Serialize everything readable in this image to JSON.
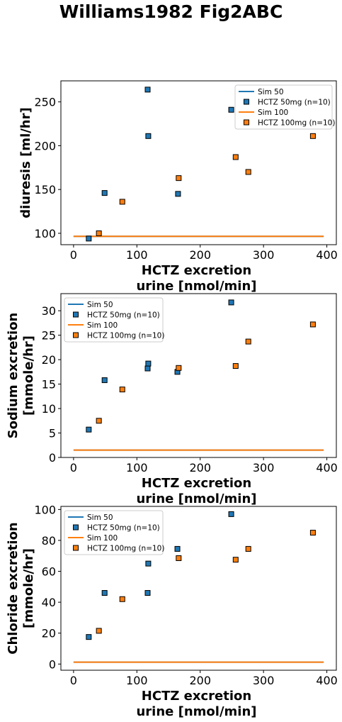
{
  "figure": {
    "title": "Williams1982 Fig2ABC"
  },
  "colors": {
    "sim50": "#1f77b4",
    "sim100": "#ff7f0e",
    "axis": "#000000",
    "background": "#ffffff"
  },
  "chart_data": [
    {
      "type": "scatter",
      "xlabel": [
        "HCTZ excretion",
        "urine [nmol/min]"
      ],
      "ylabel": [
        "diuresis [ml/hr]"
      ],
      "xlim": [
        -20,
        415
      ],
      "ylim": [
        87,
        274
      ],
      "xticks": [
        0,
        100,
        200,
        300,
        400
      ],
      "yticks": [
        100,
        150,
        200,
        250
      ],
      "grid": false,
      "legend_position": "top-right",
      "series": [
        {
          "name": "Sim 50",
          "kind": "line",
          "color": "#1f77b4",
          "x": [
            0,
            395
          ],
          "y": [
            96.5,
            96.5
          ]
        },
        {
          "name": "HCTZ 50mg (n=10)",
          "kind": "marker",
          "color": "#1f77b4",
          "x": [
            24,
            49,
            117,
            118,
            165,
            249
          ],
          "y": [
            94,
            146,
            264,
            211,
            145,
            241
          ]
        },
        {
          "name": "Sim 100",
          "kind": "line",
          "color": "#ff7f0e",
          "x": [
            0,
            395
          ],
          "y": [
            96.5,
            96.5
          ]
        },
        {
          "name": "HCTZ 100mg (n=10)",
          "kind": "marker",
          "color": "#ff7f0e",
          "x": [
            40,
            77,
            166,
            256,
            276,
            378
          ],
          "y": [
            100,
            136,
            163,
            187,
            170,
            211
          ]
        }
      ]
    },
    {
      "type": "scatter",
      "xlabel": [
        "HCTZ excretion",
        "urine [nmol/min]"
      ],
      "ylabel": [
        "Sodium excretion",
        "[mmole/hr]"
      ],
      "xlim": [
        -20,
        415
      ],
      "ylim": [
        0,
        33.5
      ],
      "xticks": [
        0,
        100,
        200,
        300,
        400
      ],
      "yticks": [
        0,
        5,
        10,
        15,
        20,
        25,
        30
      ],
      "grid": false,
      "legend_position": "top-left",
      "series": [
        {
          "name": "Sim 50",
          "kind": "line",
          "color": "#1f77b4",
          "x": [
            0,
            395
          ],
          "y": [
            1.5,
            1.5
          ]
        },
        {
          "name": "HCTZ 50mg (n=10)",
          "kind": "marker",
          "color": "#1f77b4",
          "x": [
            24,
            49,
            117,
            118,
            164,
            249
          ],
          "y": [
            5.7,
            15.8,
            18.2,
            19.2,
            17.5,
            31.7
          ]
        },
        {
          "name": "Sim 100",
          "kind": "line",
          "color": "#ff7f0e",
          "x": [
            0,
            395
          ],
          "y": [
            1.5,
            1.5
          ]
        },
        {
          "name": "HCTZ 100mg (n=10)",
          "kind": "marker",
          "color": "#ff7f0e",
          "x": [
            40,
            77,
            166,
            256,
            276,
            378
          ],
          "y": [
            7.5,
            13.9,
            18.3,
            18.7,
            23.7,
            27.2
          ]
        }
      ]
    },
    {
      "type": "scatter",
      "xlabel": [
        "HCTZ excretion",
        "urine [nmol/min]"
      ],
      "ylabel": [
        "Chloride excretion",
        "[mmole/hr]"
      ],
      "xlim": [
        -20,
        415
      ],
      "ylim": [
        -4,
        102
      ],
      "xticks": [
        0,
        100,
        200,
        300,
        400
      ],
      "yticks": [
        0,
        20,
        40,
        60,
        80,
        100
      ],
      "grid": false,
      "legend_position": "top-left",
      "series": [
        {
          "name": "Sim 50",
          "kind": "line",
          "color": "#1f77b4",
          "x": [
            0,
            395
          ],
          "y": [
            1.2,
            1.2
          ]
        },
        {
          "name": "HCTZ 50mg (n=10)",
          "kind": "marker",
          "color": "#1f77b4",
          "x": [
            24,
            49,
            117,
            118,
            164,
            249
          ],
          "y": [
            17.5,
            46,
            46,
            65,
            74.5,
            97
          ]
        },
        {
          "name": "Sim 100",
          "kind": "line",
          "color": "#ff7f0e",
          "x": [
            0,
            395
          ],
          "y": [
            1.2,
            1.2
          ]
        },
        {
          "name": "HCTZ 100mg (n=10)",
          "kind": "marker",
          "color": "#ff7f0e",
          "x": [
            40,
            77,
            166,
            256,
            276,
            378
          ],
          "y": [
            21.5,
            42,
            68.5,
            67.5,
            74.5,
            85
          ]
        }
      ]
    }
  ]
}
